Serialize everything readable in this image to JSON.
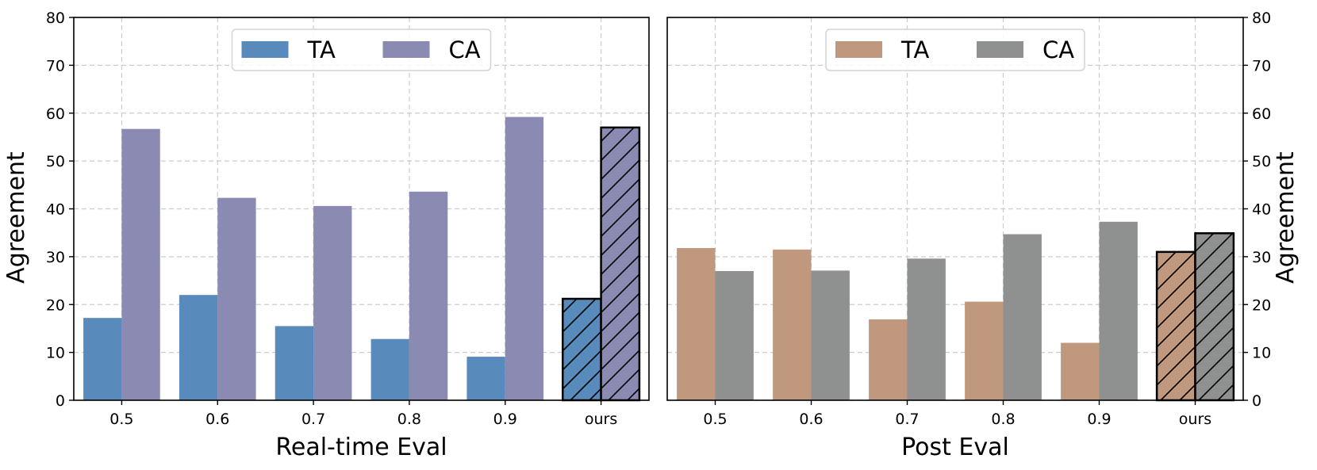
{
  "chart_data": [
    {
      "type": "bar",
      "title": "",
      "xlabel": "Real-time Eval",
      "ylabel": "Agreement",
      "ylim": [
        0,
        80
      ],
      "yticks": [
        0,
        10,
        20,
        30,
        40,
        50,
        60,
        70,
        80
      ],
      "yaxis_side": "left",
      "categories": [
        "0.5",
        "0.6",
        "0.7",
        "0.8",
        "0.9",
        "ours"
      ],
      "highlight_category": "ours",
      "grid": true,
      "legend_position": "top-center",
      "series": [
        {
          "name": "TA",
          "color": "#588bbc",
          "values": [
            17.2,
            22.0,
            15.5,
            12.8,
            9.1,
            21.2
          ]
        },
        {
          "name": "CA",
          "color": "#8a8ab2",
          "values": [
            56.7,
            42.3,
            40.6,
            43.6,
            59.2,
            57.0
          ]
        }
      ]
    },
    {
      "type": "bar",
      "title": "",
      "xlabel": "Post Eval",
      "ylabel": "Agreement",
      "ylim": [
        0,
        80
      ],
      "yticks": [
        0,
        10,
        20,
        30,
        40,
        50,
        60,
        70,
        80
      ],
      "yaxis_side": "right",
      "categories": [
        "0.5",
        "0.6",
        "0.7",
        "0.8",
        "0.9",
        "ours"
      ],
      "highlight_category": "ours",
      "grid": true,
      "legend_position": "top-center",
      "series": [
        {
          "name": "TA",
          "color": "#c0987d",
          "values": [
            31.8,
            31.5,
            16.9,
            20.6,
            12.0,
            31.0
          ]
        },
        {
          "name": "CA",
          "color": "#8f9190",
          "values": [
            27.0,
            27.1,
            29.6,
            34.7,
            37.3,
            34.9
          ]
        }
      ]
    }
  ]
}
